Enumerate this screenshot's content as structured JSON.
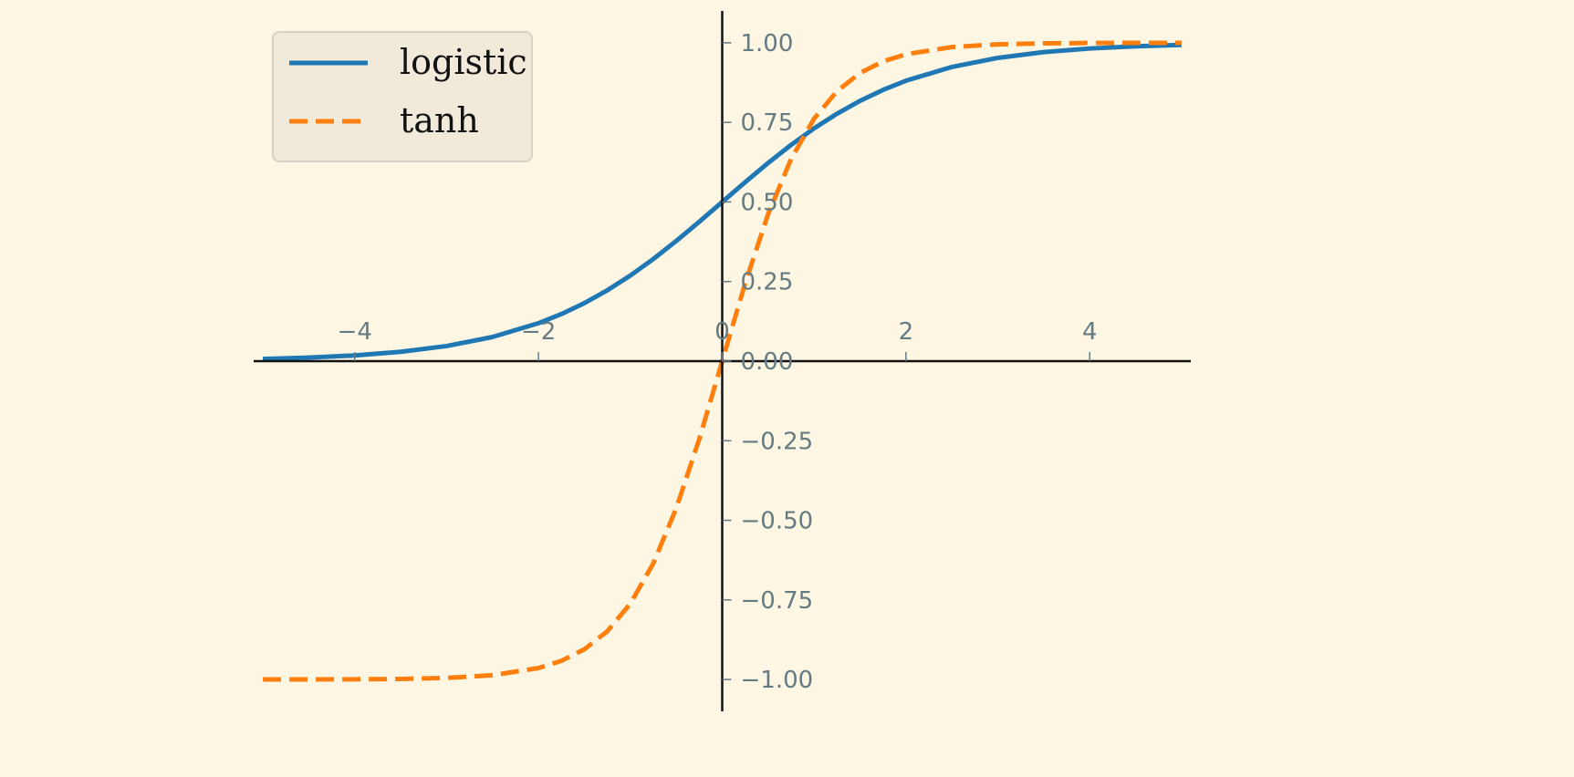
{
  "chart_data": {
    "type": "line",
    "title": "",
    "xlabel": "",
    "ylabel": "",
    "xlim": [
      -5.1,
      5.1
    ],
    "ylim": [
      -1.1,
      1.1
    ],
    "x_ticks": [
      -4,
      -2,
      0,
      2,
      4
    ],
    "x_tick_labels": [
      "−4",
      "−2",
      "0",
      "2",
      "4"
    ],
    "y_ticks": [
      1.0,
      0.75,
      0.5,
      0.25,
      0.0,
      -0.25,
      -0.5,
      -0.75,
      -1.0
    ],
    "y_tick_labels": [
      "1.00",
      "0.75",
      "0.50",
      "0.25",
      "0.00",
      "−0.25",
      "−0.50",
      "−0.75",
      "−1.00"
    ],
    "grid": false,
    "axes_style": "spines through origin",
    "legend_position": "top-left",
    "x": [
      -5,
      -4.5,
      -4,
      -3.5,
      -3,
      -2.5,
      -2,
      -1.75,
      -1.5,
      -1.25,
      -1,
      -0.75,
      -0.5,
      -0.25,
      0,
      0.25,
      0.5,
      0.75,
      1,
      1.25,
      1.5,
      1.75,
      2,
      2.5,
      3,
      3.5,
      4,
      4.5,
      5
    ],
    "series": [
      {
        "name": "logistic",
        "color": "#1f77b4",
        "style": "solid",
        "values": [
          0.0067,
          0.011,
          0.018,
          0.0293,
          0.0474,
          0.0759,
          0.1192,
          0.148,
          0.1824,
          0.2227,
          0.2689,
          0.3208,
          0.3775,
          0.4378,
          0.5,
          0.5622,
          0.6225,
          0.6792,
          0.7311,
          0.7773,
          0.8176,
          0.852,
          0.8808,
          0.9241,
          0.9526,
          0.9707,
          0.982,
          0.989,
          0.9933
        ]
      },
      {
        "name": "tanh",
        "color": "#ff7f0e",
        "style": "dashed",
        "values": [
          -0.9999,
          -0.9998,
          -0.9993,
          -0.9982,
          -0.9951,
          -0.9866,
          -0.964,
          -0.9414,
          -0.9051,
          -0.8483,
          -0.7616,
          -0.6351,
          -0.4621,
          -0.2449,
          0,
          0.2449,
          0.4621,
          0.6351,
          0.7616,
          0.8483,
          0.9051,
          0.9414,
          0.964,
          0.9866,
          0.9951,
          0.9982,
          0.9993,
          0.9998,
          0.9999
        ]
      }
    ]
  }
}
